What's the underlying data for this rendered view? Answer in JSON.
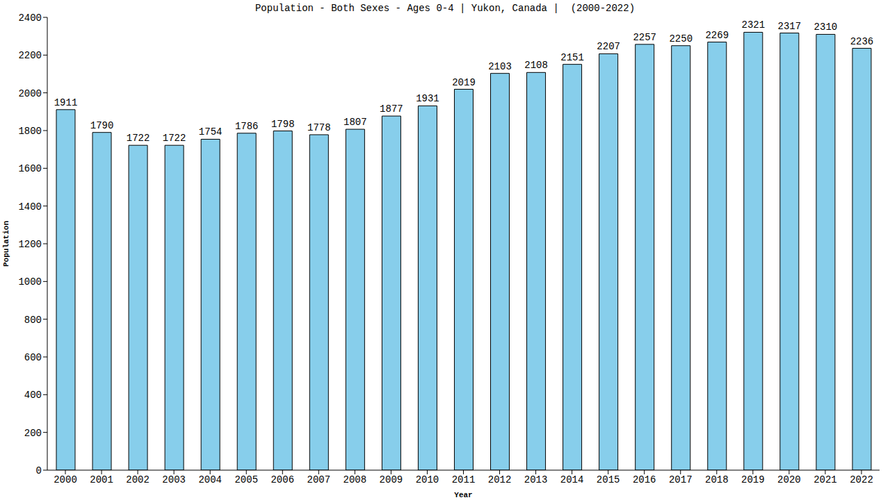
{
  "chart_data": {
    "type": "bar",
    "title": "Population - Both Sexes - Ages 0-4 | Yukon, Canada |  (2000-2022)",
    "x_label": "Year",
    "y_label": "Population",
    "categories": [
      "2000",
      "2001",
      "2002",
      "2003",
      "2004",
      "2005",
      "2006",
      "2007",
      "2008",
      "2009",
      "2010",
      "2011",
      "2012",
      "2013",
      "2014",
      "2015",
      "2016",
      "2017",
      "2018",
      "2019",
      "2020",
      "2021",
      "2022"
    ],
    "values": [
      1911,
      1790,
      1722,
      1722,
      1754,
      1786,
      1798,
      1778,
      1807,
      1877,
      1931,
      2019,
      2103,
      2108,
      2151,
      2207,
      2257,
      2250,
      2269,
      2321,
      2317,
      2310,
      2236
    ],
    "color": "#87ceeb",
    "ylim": [
      0,
      2400
    ],
    "yticks": [
      0,
      200,
      400,
      600,
      800,
      1000,
      1200,
      1400,
      1600,
      1800,
      2000,
      2200,
      2400
    ],
    "grid": false,
    "data_labels": true
  }
}
